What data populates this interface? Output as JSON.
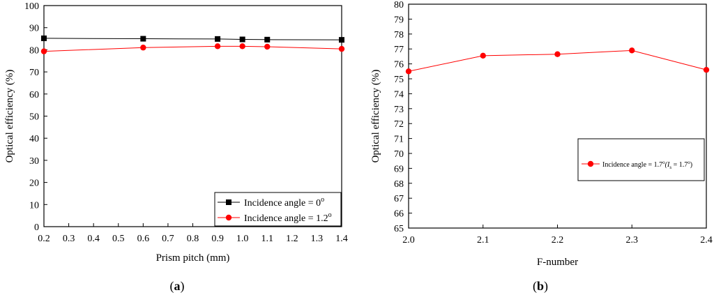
{
  "chart_data": [
    {
      "id": "a",
      "type": "line",
      "caption_open": "(",
      "caption_letter": "a",
      "caption_close": ")",
      "title": "",
      "xlabel": "Prism pitch (mm)",
      "ylabel": "Optical efficiency (%)",
      "xlim": [
        0.2,
        1.4
      ],
      "ylim": [
        0,
        100
      ],
      "xticks": [
        "0.2",
        "0.3",
        "0.4",
        "0.5",
        "0.6",
        "0.7",
        "0.8",
        "0.9",
        "1.0",
        "1.1",
        "1.2",
        "1.3",
        "1.4"
      ],
      "yticks": [
        "0",
        "10",
        "20",
        "30",
        "40",
        "50",
        "60",
        "70",
        "80",
        "90",
        "100"
      ],
      "legend_position": "bottom-right",
      "series": [
        {
          "name": "Incidence angle = 0",
          "name_sup": "o",
          "name_suffix": "",
          "color": "#000000",
          "marker": "square",
          "x": [
            0.2,
            0.6,
            0.9,
            1.0,
            1.1,
            1.4
          ],
          "y": [
            85.2,
            85.0,
            84.9,
            84.7,
            84.6,
            84.5
          ]
        },
        {
          "name": "Incidence angle = 1.2",
          "name_sup": "o",
          "name_suffix": "",
          "color": "#ff0000",
          "marker": "circle",
          "x": [
            0.2,
            0.6,
            0.9,
            1.0,
            1.1,
            1.4
          ],
          "y": [
            79.3,
            81.0,
            81.6,
            81.6,
            81.4,
            80.4
          ]
        }
      ]
    },
    {
      "id": "b",
      "type": "line",
      "caption_open": "(",
      "caption_letter": "b",
      "caption_close": ")",
      "title": "",
      "xlabel": "F-number",
      "ylabel": "Optical efficiency (%)",
      "xlim": [
        2.0,
        2.4
      ],
      "ylim": [
        65,
        80
      ],
      "xticks": [
        "2.0",
        "2.1",
        "2.2",
        "2.3",
        "2.4"
      ],
      "yticks": [
        "65",
        "66",
        "67",
        "68",
        "69",
        "70",
        "71",
        "72",
        "73",
        "74",
        "75",
        "76",
        "77",
        "78",
        "79",
        "80"
      ],
      "legend_position": "center-right",
      "series": [
        {
          "name": "Incidence angle = 1.7",
          "name_sup": "o",
          "name_suffix": "(I",
          "name_sub": "s",
          "name_mid": " = 1.7",
          "name_sup2": "o",
          "name_end": ")",
          "color": "#ff0000",
          "marker": "circle",
          "x": [
            2.0,
            2.1,
            2.2,
            2.3,
            2.4
          ],
          "y": [
            75.5,
            76.55,
            76.65,
            76.9,
            75.6
          ]
        }
      ]
    }
  ]
}
